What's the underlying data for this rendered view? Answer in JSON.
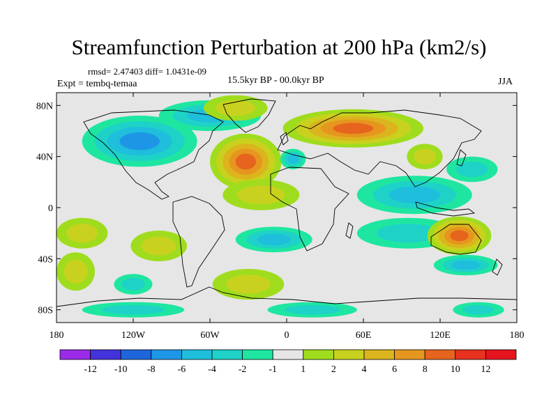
{
  "title": "Streamfunction Perturbation at 200 hPa (km2/s)",
  "stats": "rmsd= 2.47403 diff= 1.0431e-09",
  "expt": "Expt = tembq-temaa",
  "period": "15.5kyr BP - 00.0kyr BP",
  "season": "JJA",
  "map": {
    "lon_range": [
      -180,
      180
    ],
    "lat_range": [
      -90,
      90
    ],
    "lat_ticks": [
      {
        "value": 80,
        "label": "80N"
      },
      {
        "value": 40,
        "label": "40N"
      },
      {
        "value": 0,
        "label": "0"
      },
      {
        "value": -40,
        "label": "40S"
      },
      {
        "value": -80,
        "label": "80S"
      }
    ],
    "lon_ticks": [
      {
        "value": -180,
        "label": "180"
      },
      {
        "value": -120,
        "label": "120W"
      },
      {
        "value": -60,
        "label": "60W"
      },
      {
        "value": 0,
        "label": "0"
      },
      {
        "value": 60,
        "label": "60E"
      },
      {
        "value": 120,
        "label": "120E"
      },
      {
        "value": 180,
        "label": "180"
      }
    ]
  },
  "colorbar": {
    "colors": [
      "#9b2be8",
      "#4432dc",
      "#1e66dc",
      "#1e96e6",
      "#1ebedc",
      "#1ed2c8",
      "#1ee6a0",
      "#e6e6e6",
      "#a0dc1e",
      "#c8d21e",
      "#dcb41e",
      "#e6961e",
      "#e6641e",
      "#e6321e",
      "#e6141e"
    ],
    "labels": [
      "-12",
      "-10",
      "-8",
      "-6",
      "-4",
      "-2",
      "-1",
      "1",
      "2",
      "4",
      "6",
      "8",
      "10",
      "12"
    ]
  },
  "field": {
    "blobs": [
      {
        "lon": -115,
        "lat": 52,
        "rx": 45,
        "ry": 20,
        "v": -6
      },
      {
        "lon": -60,
        "lat": 72,
        "rx": 40,
        "ry": 12,
        "v": -4
      },
      {
        "lon": -40,
        "lat": 78,
        "rx": 25,
        "ry": 10,
        "v": 2
      },
      {
        "lon": -32,
        "lat": 36,
        "rx": 28,
        "ry": 22,
        "v": 8
      },
      {
        "lon": -20,
        "lat": 10,
        "rx": 30,
        "ry": 12,
        "v": 2
      },
      {
        "lon": 5,
        "lat": 38,
        "rx": 10,
        "ry": 8,
        "v": -4
      },
      {
        "lon": 52,
        "lat": 62,
        "rx": 55,
        "ry": 15,
        "v": 8
      },
      {
        "lon": 108,
        "lat": 40,
        "rx": 14,
        "ry": 10,
        "v": 2
      },
      {
        "lon": 100,
        "lat": 10,
        "rx": 45,
        "ry": 15,
        "v": -4
      },
      {
        "lon": 145,
        "lat": 30,
        "rx": 20,
        "ry": 10,
        "v": -2
      },
      {
        "lon": -160,
        "lat": -20,
        "rx": 20,
        "ry": 12,
        "v": 2
      },
      {
        "lon": -165,
        "lat": -50,
        "rx": 15,
        "ry": 15,
        "v": 2
      },
      {
        "lon": -100,
        "lat": -30,
        "rx": 22,
        "ry": 12,
        "v": 2
      },
      {
        "lon": -120,
        "lat": -60,
        "rx": 15,
        "ry": 8,
        "v": -2
      },
      {
        "lon": -10,
        "lat": -25,
        "rx": 30,
        "ry": 10,
        "v": -4
      },
      {
        "lon": 95,
        "lat": -20,
        "rx": 40,
        "ry": 12,
        "v": -2
      },
      {
        "lon": 135,
        "lat": -22,
        "rx": 25,
        "ry": 15,
        "v": 8
      },
      {
        "lon": 140,
        "lat": -45,
        "rx": 25,
        "ry": 8,
        "v": -4
      },
      {
        "lon": -30,
        "lat": -60,
        "rx": 28,
        "ry": 12,
        "v": 2
      },
      {
        "lon": -120,
        "lat": -80,
        "rx": 40,
        "ry": 6,
        "v": -2
      },
      {
        "lon": 20,
        "lat": -80,
        "rx": 35,
        "ry": 6,
        "v": -2
      },
      {
        "lon": 150,
        "lat": -80,
        "rx": 20,
        "ry": 6,
        "v": -2
      }
    ]
  }
}
